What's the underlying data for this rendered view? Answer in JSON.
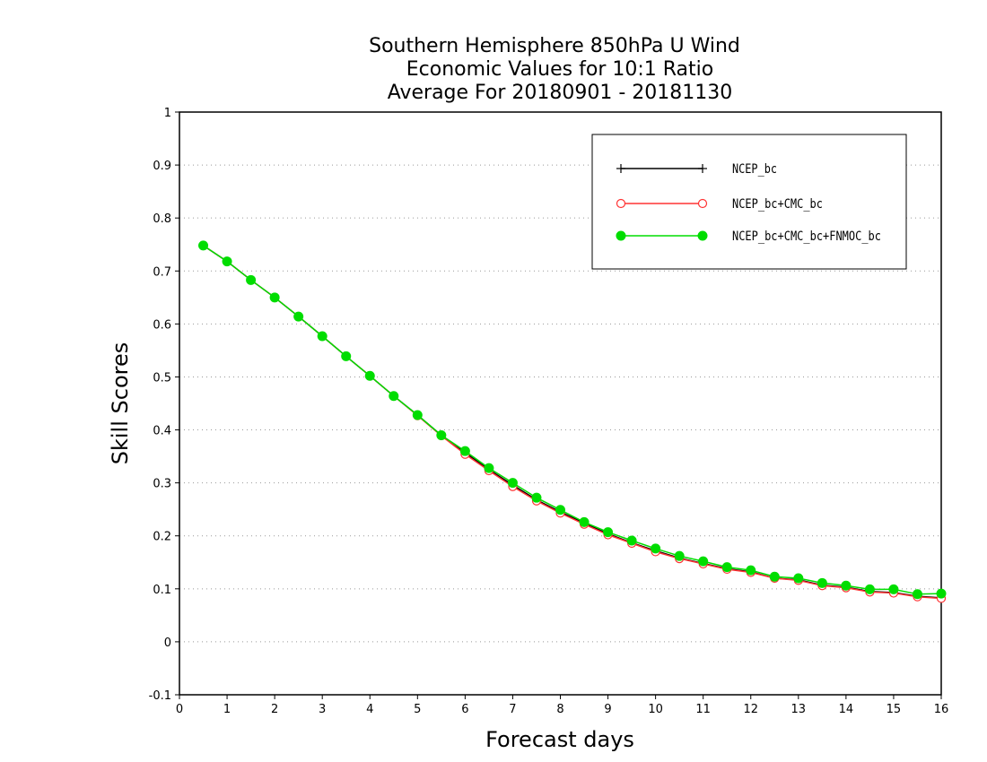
{
  "chart_data": {
    "type": "line",
    "title": [
      "Southern Hemisphere 850hPa U Wind",
      "Economic Values for 10:1 Ratio",
      "Average For 20180901 - 20181130"
    ],
    "xlabel": "Forecast days",
    "ylabel": "Skill Scores",
    "xlim": [
      0,
      16
    ],
    "ylim": [
      -0.1,
      1
    ],
    "xticks": [
      "0",
      "1",
      "2",
      "3",
      "4",
      "5",
      "6",
      "7",
      "8",
      "9",
      "10",
      "11",
      "12",
      "13",
      "14",
      "15",
      "16"
    ],
    "yticks": [
      "-0.1",
      "0",
      "0.1",
      "0.2",
      "0.3",
      "0.4",
      "0.5",
      "0.6",
      "0.7",
      "0.8",
      "0.9",
      "1"
    ],
    "grid": "horizontal dotted",
    "legend_position": "top-right",
    "x": [
      0.5,
      1,
      1.5,
      2,
      2.5,
      3,
      3.5,
      4,
      4.5,
      5,
      5.5,
      6,
      6.5,
      7,
      7.5,
      8,
      8.5,
      9,
      9.5,
      10,
      10.5,
      11,
      11.5,
      12,
      12.5,
      13,
      13.5,
      14,
      14.5,
      15,
      15.5,
      16
    ],
    "series": [
      {
        "name": "NCEP_bc",
        "color": "#000000",
        "marker": "plus",
        "values": [
          0.748,
          0.718,
          0.683,
          0.65,
          0.614,
          0.577,
          0.539,
          0.502,
          0.464,
          0.428,
          0.39,
          0.357,
          0.325,
          0.296,
          0.268,
          0.245,
          0.224,
          0.204,
          0.187,
          0.172,
          0.158,
          0.148,
          0.138,
          0.132,
          0.12,
          0.117,
          0.107,
          0.103,
          0.095,
          0.093,
          0.086,
          0.083
        ]
      },
      {
        "name": "NCEP_bc+CMC_bc",
        "color": "#ff3333",
        "marker": "open-circle",
        "values": [
          0.748,
          0.718,
          0.683,
          0.65,
          0.614,
          0.577,
          0.539,
          0.502,
          0.464,
          0.427,
          0.389,
          0.354,
          0.323,
          0.293,
          0.266,
          0.243,
          0.222,
          0.202,
          0.186,
          0.17,
          0.157,
          0.147,
          0.137,
          0.131,
          0.12,
          0.116,
          0.106,
          0.102,
          0.094,
          0.092,
          0.085,
          0.082
        ]
      },
      {
        "name": "NCEP_bc+CMC_bc+FNMOC_bc",
        "color": "#00dd00",
        "marker": "filled-circle",
        "values": [
          0.748,
          0.718,
          0.683,
          0.65,
          0.614,
          0.577,
          0.539,
          0.502,
          0.464,
          0.428,
          0.39,
          0.36,
          0.328,
          0.3,
          0.272,
          0.249,
          0.226,
          0.207,
          0.191,
          0.176,
          0.162,
          0.152,
          0.141,
          0.135,
          0.123,
          0.12,
          0.111,
          0.106,
          0.099,
          0.099,
          0.09,
          0.091
        ]
      }
    ]
  }
}
